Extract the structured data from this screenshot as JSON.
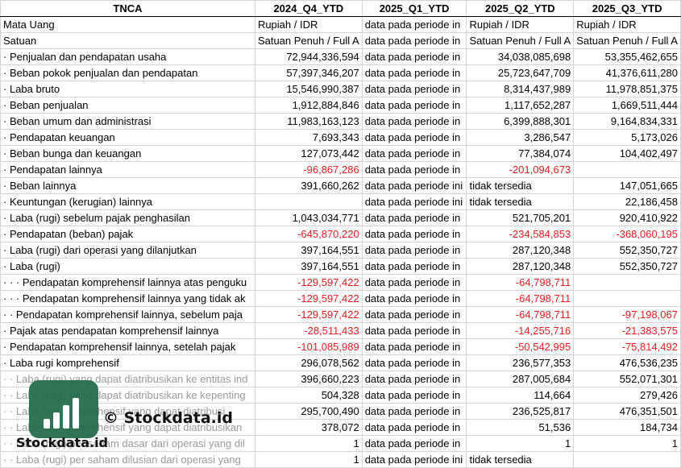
{
  "sheet": {
    "headers": [
      "TNCA",
      "2024_Q4_YTD",
      "2025_Q1_YTD",
      "2025_Q2_YTD",
      "2025_Q3_YTD"
    ],
    "rows": [
      {
        "label": "Mata Uang",
        "cells": [
          "Rupiah / IDR",
          "data pada periode in",
          "Rupiah / IDR",
          "Rupiah / IDR"
        ],
        "kind": [
          "txt",
          "txt",
          "txt",
          "txt"
        ]
      },
      {
        "label": "Satuan",
        "cells": [
          "Satuan Penuh / Full A",
          "data pada periode in",
          "Satuan Penuh / Full A",
          "Satuan Penuh / Full A"
        ],
        "kind": [
          "txt",
          "txt",
          "txt",
          "txt"
        ]
      },
      {
        "label": "· Penjualan dan pendapatan usaha",
        "cells": [
          "72,944,336,594",
          "data pada periode in",
          "34,038,085,698",
          "53,355,462,655"
        ],
        "kind": [
          "num",
          "txt",
          "num",
          "num"
        ]
      },
      {
        "label": "· Beban pokok penjualan dan pendapatan",
        "cells": [
          "57,397,346,207",
          "data pada periode in",
          "25,723,647,709",
          "41,376,611,280"
        ],
        "kind": [
          "num",
          "txt",
          "num",
          "num"
        ]
      },
      {
        "label": "· Laba bruto",
        "cells": [
          "15,546,990,387",
          "data pada periode in",
          "8,314,437,989",
          "11,978,851,375"
        ],
        "kind": [
          "num",
          "txt",
          "num",
          "num"
        ]
      },
      {
        "label": "· Beban penjualan",
        "cells": [
          "1,912,884,846",
          "data pada periode in",
          "1,117,652,287",
          "1,669,511,444"
        ],
        "kind": [
          "num",
          "txt",
          "num",
          "num"
        ]
      },
      {
        "label": "· Beban umum dan administrasi",
        "cells": [
          "11,983,163,123",
          "data pada periode in",
          "6,399,888,301",
          "9,164,834,331"
        ],
        "kind": [
          "num",
          "txt",
          "num",
          "num"
        ]
      },
      {
        "label": "· Pendapatan keuangan",
        "cells": [
          "7,693,343",
          "data pada periode in",
          "3,286,547",
          "5,173,026"
        ],
        "kind": [
          "num",
          "txt",
          "num",
          "num"
        ]
      },
      {
        "label": "· Beban bunga dan keuangan",
        "cells": [
          "127,073,442",
          "data pada periode in",
          "77,384,074",
          "104,402,497"
        ],
        "kind": [
          "num",
          "txt",
          "num",
          "num"
        ]
      },
      {
        "label": "· Pendapatan lainnya",
        "cells": [
          "-96,867,286",
          "data pada periode in",
          "-201,094,673",
          ""
        ],
        "kind": [
          "neg",
          "txt",
          "neg",
          "num"
        ]
      },
      {
        "label": "· Beban lainnya",
        "cells": [
          "391,660,262",
          "data pada periode ini",
          "tidak tersedia",
          "147,051,665"
        ],
        "kind": [
          "num",
          "txt",
          "txt",
          "num"
        ]
      },
      {
        "label": "· Keuntungan (kerugian) lainnya",
        "cells": [
          "",
          "data pada periode ini",
          "tidak tersedia",
          "22,186,458"
        ],
        "kind": [
          "num",
          "txt",
          "txt",
          "num"
        ]
      },
      {
        "label": "· Laba (rugi) sebelum pajak penghasilan",
        "cells": [
          "1,043,034,771",
          "data pada periode in",
          "521,705,201",
          "920,410,922"
        ],
        "kind": [
          "num",
          "txt",
          "num",
          "num"
        ]
      },
      {
        "label": "· Pendapatan (beban) pajak",
        "cells": [
          "-645,870,220",
          "data pada periode in",
          "-234,584,853",
          "-368,060,195"
        ],
        "kind": [
          "neg",
          "txt",
          "neg",
          "neg"
        ]
      },
      {
        "label": "· Laba (rugi) dari operasi yang dilanjutkan",
        "cells": [
          "397,164,551",
          "data pada periode in",
          "287,120,348",
          "552,350,727"
        ],
        "kind": [
          "num",
          "txt",
          "num",
          "num"
        ]
      },
      {
        "label": "· Laba (rugi)",
        "cells": [
          "397,164,551",
          "data pada periode in",
          "287,120,348",
          "552,350,727"
        ],
        "kind": [
          "num",
          "txt",
          "num",
          "num"
        ]
      },
      {
        "label": "· · · Pendapatan komprehensif lainnya atas penguku",
        "cells": [
          "-129,597,422",
          "data pada periode in",
          "-64,798,711",
          ""
        ],
        "kind": [
          "neg",
          "txt",
          "neg",
          "num"
        ]
      },
      {
        "label": "· · · Pendapatan komprehensif lainnya yang tidak ak",
        "cells": [
          "-129,597,422",
          "data pada periode in",
          "-64,798,711",
          ""
        ],
        "kind": [
          "neg",
          "txt",
          "neg",
          "num"
        ]
      },
      {
        "label": "· · Pendapatan komprehensif lainnya, sebelum paja",
        "cells": [
          "-129,597,422",
          "data pada periode in",
          "-64,798,711",
          "-97,198,067"
        ],
        "kind": [
          "neg",
          "txt",
          "neg",
          "neg"
        ]
      },
      {
        "label": "· Pajak atas pendapatan komprehensif lainnya",
        "cells": [
          "-28,511,433",
          "data pada periode in",
          "-14,255,716",
          "-21,383,575"
        ],
        "kind": [
          "neg",
          "txt",
          "neg",
          "neg"
        ]
      },
      {
        "label": "· Pendapatan komprehensif lainnya, setelah pajak",
        "cells": [
          "-101,085,989",
          "data pada periode in",
          "-50,542,995",
          "-75,814,492"
        ],
        "kind": [
          "neg",
          "txt",
          "neg",
          "neg"
        ]
      },
      {
        "label": "· Laba rugi komprehensif",
        "cells": [
          "296,078,562",
          "data pada periode in",
          "236,577,353",
          "476,536,235"
        ],
        "kind": [
          "num",
          "txt",
          "num",
          "num"
        ]
      },
      {
        "label": "· · Laba (rugi) yang dapat diatribusikan ke entitas ind",
        "cells": [
          "396,660,223",
          "data pada periode in",
          "287,005,684",
          "552,071,301"
        ],
        "kind": [
          "num",
          "txt",
          "num",
          "num"
        ],
        "faded": true
      },
      {
        "label": "· · Laba (rugi) yang dapat diatribusikan ke kepenting",
        "cells": [
          "504,328",
          "data pada periode in",
          "114,664",
          "279,426"
        ],
        "kind": [
          "num",
          "txt",
          "num",
          "num"
        ],
        "faded": true
      },
      {
        "label": "· · Laba rugi komprehensif yang dapat diatribusi",
        "cells": [
          "295,700,490",
          "data pada periode in",
          "236,525,817",
          "476,351,501"
        ],
        "kind": [
          "num",
          "txt",
          "num",
          "num"
        ],
        "faded": true
      },
      {
        "label": "· · Laba rugi komprehensif yang dapat diatribusikan",
        "cells": [
          "378,072",
          "data pada periode in",
          "51,536",
          "184,734"
        ],
        "kind": [
          "num",
          "txt",
          "num",
          "num"
        ],
        "faded": true
      },
      {
        "label": "· · Laba (rugi) per saham dasar dari operasi yang dil",
        "cells": [
          "1",
          "data pada periode in",
          "1",
          "1"
        ],
        "kind": [
          "num",
          "txt",
          "num",
          "num"
        ],
        "faded": true
      },
      {
        "label": "· · Laba (rugi) per saham dilusian dari operasi yang",
        "cells": [
          "1",
          "data pada periode ini",
          "tidak tersedia",
          ""
        ],
        "kind": [
          "num",
          "txt",
          "txt",
          "num"
        ],
        "faded": true
      }
    ]
  },
  "watermark": {
    "copyright_text": "© Stockdata.id",
    "brand_text": "Stockdata.id",
    "logo_color": "#1f6b48",
    "logo_icon": "bar-chart-icon"
  }
}
